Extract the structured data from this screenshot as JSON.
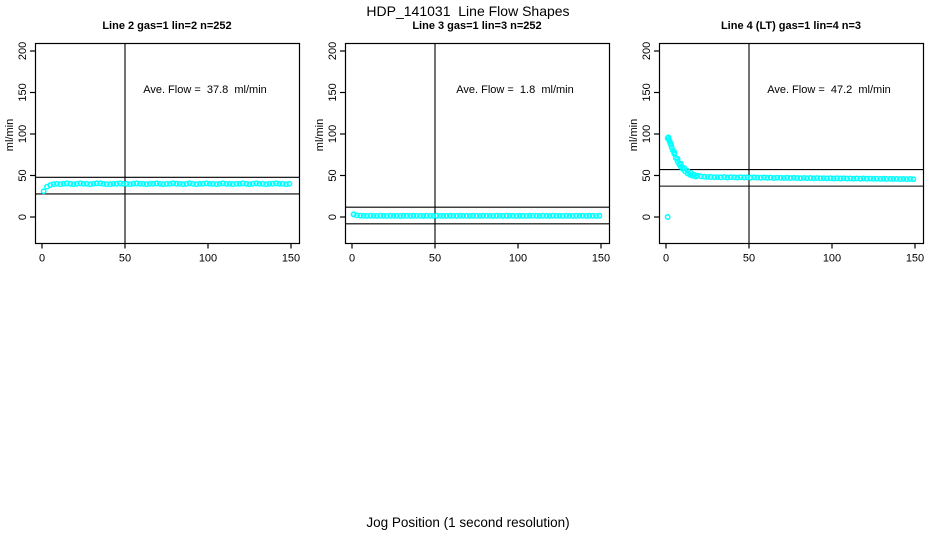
{
  "page": {
    "title": "HDP_141031  Line Flow Shapes",
    "xlabel": "Jog Position (1 second resolution)"
  },
  "colors": {
    "points": "#00FFFF",
    "axis": "#000000",
    "background": "#FFFFFF"
  },
  "chart_data": [
    {
      "type": "scatter",
      "title": "Line 2 gas=1 lin=2 n=252",
      "annotation": "Ave. Flow =  37.8  ml/min",
      "ave_flow_ml_min": 37.8,
      "ylabel": "ml/min",
      "xlim": [
        0,
        150
      ],
      "ylim": [
        -30,
        210
      ],
      "x_ticks": [
        0,
        50,
        100,
        150
      ],
      "y_ticks": [
        0,
        50,
        100,
        150,
        200
      ],
      "vline_x": 50,
      "hlines": [
        47.8,
        27.8
      ],
      "grid": false,
      "series": {
        "x_start": 1,
        "x_step": 2,
        "y": [
          31,
          36.5,
          38.5,
          39.5,
          40,
          39.5,
          40,
          40.5,
          40,
          39.5,
          40,
          40.5,
          40,
          40,
          39.5,
          40,
          40.5,
          40.5,
          40,
          39.5,
          39.5,
          40,
          40,
          40.5,
          40,
          40,
          39.5,
          40,
          40.5,
          40,
          40,
          39.5,
          40,
          40,
          40.5,
          40,
          39.5,
          40,
          40,
          40.5,
          40,
          40,
          39.5,
          40,
          40.5,
          40,
          39.5,
          40,
          40,
          40.5,
          40,
          40,
          39.5,
          40,
          40.5,
          40,
          40,
          39.5,
          40,
          40,
          40.5,
          40,
          39.5,
          40,
          40.5,
          40,
          40,
          39.5,
          40,
          40,
          40.5,
          40,
          40,
          39.5,
          40
        ]
      },
      "extra_points": []
    },
    {
      "type": "scatter",
      "title": "Line 3 gas=1 lin=3 n=252",
      "annotation": "Ave. Flow =  1.8  ml/min",
      "ave_flow_ml_min": 1.8,
      "ylabel": "ml/min",
      "xlim": [
        0,
        150
      ],
      "ylim": [
        -30,
        210
      ],
      "x_ticks": [
        0,
        50,
        100,
        150
      ],
      "y_ticks": [
        0,
        50,
        100,
        150,
        200
      ],
      "vline_x": 50,
      "hlines": [
        11.8,
        -8.2
      ],
      "grid": false,
      "series": {
        "x_start": 1,
        "x_step": 2,
        "y": [
          3,
          2,
          1.6,
          1.4,
          1.3,
          1.5,
          1.4,
          1.3,
          1.5,
          1.4,
          1.3,
          1.5,
          1.4,
          1.4,
          1.3,
          1.5,
          1.4,
          1.3,
          1.5,
          1.4,
          1.4,
          1.3,
          1.5,
          1.4,
          1.3,
          1.5,
          1.4,
          1.4,
          1.3,
          1.5,
          1.4,
          1.3,
          1.5,
          1.4,
          1.4,
          1.3,
          1.5,
          1.4,
          1.3,
          1.5,
          1.4,
          1.4,
          1.3,
          1.5,
          1.4,
          1.3,
          1.5,
          1.4,
          1.4,
          1.3,
          1.5,
          1.4,
          1.3,
          1.5,
          1.4,
          1.4,
          1.3,
          1.5,
          1.4,
          1.3,
          1.5,
          1.4,
          1.4,
          1.3,
          1.5,
          1.4,
          1.3,
          1.5,
          1.4,
          1.4,
          1.3,
          1.5,
          1.4,
          1.3,
          1.5
        ]
      },
      "extra_points": [
        [
          1,
          3.2
        ]
      ]
    },
    {
      "type": "scatter",
      "title": "Line 4 (LT) gas=1 lin=4 n=3",
      "annotation": "Ave. Flow =  47.2  ml/min",
      "ave_flow_ml_min": 47.2,
      "ylabel": "ml/min",
      "xlim": [
        0,
        150
      ],
      "ylim": [
        -30,
        210
      ],
      "x_ticks": [
        0,
        50,
        100,
        150
      ],
      "y_ticks": [
        0,
        50,
        100,
        150,
        200
      ],
      "vline_x": 50,
      "hlines": [
        57.2,
        37.2
      ],
      "grid": false,
      "series": {
        "x_start": 1,
        "x_step": 2,
        "y": [
          95,
          87,
          78,
          70,
          64,
          59,
          55.5,
          53,
          51,
          49.8,
          49,
          48.6,
          48.3,
          48.2,
          48,
          48,
          47.8,
          48.2,
          47.6,
          48,
          47.8,
          47.5,
          48,
          47.6,
          47.8,
          47.4,
          47.8,
          47.5,
          47.2,
          47.6,
          47.3,
          47.5,
          47,
          47.4,
          47.2,
          47,
          47.3,
          46.9,
          47.2,
          47,
          46.8,
          47.1,
          46.8,
          47,
          46.6,
          46.9,
          46.6,
          46.8,
          46.5,
          46.8,
          46.4,
          46.7,
          46.4,
          46.6,
          46.3,
          46.5,
          46.2,
          46.5,
          46.1,
          46.4,
          46.1,
          46.3,
          46,
          46.2,
          45.9,
          46.1,
          45.8,
          46,
          45.8,
          46,
          45.7,
          45.9,
          45.6,
          45.8,
          45.6
        ]
      },
      "extra_points": [
        [
          1,
          0
        ],
        [
          1.4,
          96
        ],
        [
          1.8,
          93
        ],
        [
          2.2,
          91
        ],
        [
          2.6,
          89
        ],
        [
          3.4,
          84
        ],
        [
          4.2,
          80
        ],
        [
          5,
          76
        ],
        [
          6,
          71
        ],
        [
          7,
          67
        ],
        [
          8,
          63.5
        ],
        [
          9,
          60.5
        ],
        [
          10,
          58
        ],
        [
          11.5,
          55
        ],
        [
          13,
          52.5
        ],
        [
          14.5,
          50.8
        ],
        [
          16,
          49.6
        ],
        [
          18,
          48.8
        ]
      ]
    }
  ]
}
